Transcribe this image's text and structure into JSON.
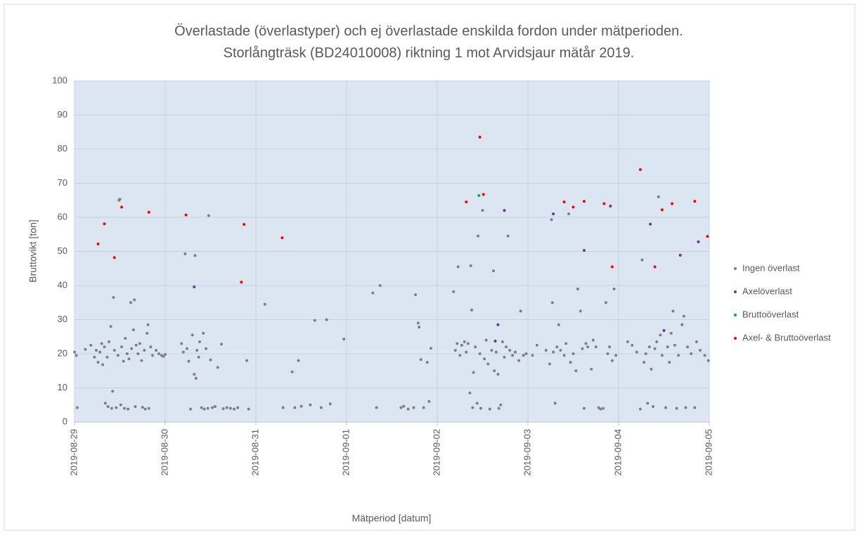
{
  "chart_data": {
    "type": "scatter",
    "title": [
      "Överlastade (överlastyper) och ej överlastade enskilda fordon under mätperioden.",
      "Storlångträsk (BD24010008) riktning 1 mot Arvidsjaur mätår 2019."
    ],
    "xlabel": "Mätperiod [datum]",
    "ylabel": "Bruttovikt [ton]",
    "xlim": [
      0,
      7
    ],
    "ylim": [
      0,
      100
    ],
    "xticks": [
      {
        "value": 0,
        "label": "2019-08-29"
      },
      {
        "value": 1,
        "label": "2019-08-30"
      },
      {
        "value": 2,
        "label": "2019-08-31"
      },
      {
        "value": 3,
        "label": "2019-09-01"
      },
      {
        "value": 4,
        "label": "2019-09-02"
      },
      {
        "value": 5,
        "label": "2019-09-03"
      },
      {
        "value": 6,
        "label": "2019-09-04"
      },
      {
        "value": 7,
        "label": "2019-09-05"
      }
    ],
    "yticks": [
      0,
      10,
      20,
      30,
      40,
      50,
      60,
      70,
      80,
      90,
      100
    ],
    "grid": true,
    "legend": "right",
    "series": [
      {
        "name": "Ingen överlast",
        "color": "#7f7f7f",
        "x": [
          0.0,
          0.02,
          0.03,
          0.12,
          0.18,
          0.22,
          0.24,
          0.26,
          0.28,
          0.3,
          0.31,
          0.33,
          0.34,
          0.36,
          0.37,
          0.38,
          0.4,
          0.41,
          0.42,
          0.43,
          0.44,
          0.46,
          0.48,
          0.49,
          0.5,
          0.51,
          0.52,
          0.54,
          0.55,
          0.56,
          0.58,
          0.59,
          0.6,
          0.62,
          0.63,
          0.65,
          0.66,
          0.67,
          0.68,
          0.7,
          0.72,
          0.74,
          0.75,
          0.77,
          0.78,
          0.8,
          0.81,
          0.82,
          0.84,
          0.86,
          0.9,
          0.93,
          0.96,
          0.98,
          1.0,
          1.18,
          1.2,
          1.22,
          1.24,
          1.26,
          1.28,
          1.3,
          1.32,
          1.33,
          1.34,
          1.35,
          1.37,
          1.38,
          1.4,
          1.42,
          1.43,
          1.45,
          1.47,
          1.48,
          1.5,
          1.52,
          1.55,
          1.58,
          1.62,
          1.64,
          1.68,
          1.72,
          1.76,
          1.8,
          1.9,
          1.92,
          2.1,
          2.3,
          2.4,
          2.43,
          2.47,
          2.5,
          2.6,
          2.65,
          2.72,
          2.78,
          2.82,
          2.97,
          3.29,
          3.33,
          3.37,
          3.6,
          3.63,
          3.68,
          3.74,
          3.76,
          3.79,
          3.8,
          3.82,
          3.85,
          3.89,
          3.91,
          3.93,
          4.18,
          4.2,
          4.22,
          4.23,
          4.25,
          4.27,
          4.3,
          4.32,
          4.34,
          4.36,
          4.37,
          4.38,
          4.39,
          4.4,
          4.42,
          4.44,
          4.45,
          4.47,
          4.48,
          4.5,
          4.52,
          4.54,
          4.56,
          4.58,
          4.6,
          4.62,
          4.63,
          4.65,
          4.67,
          4.68,
          4.7,
          4.72,
          4.74,
          4.76,
          4.78,
          4.8,
          4.83,
          4.86,
          4.9,
          4.92,
          4.95,
          4.98,
          5.05,
          5.1,
          5.2,
          5.24,
          5.26,
          5.27,
          5.28,
          5.3,
          5.32,
          5.34,
          5.36,
          5.4,
          5.42,
          5.45,
          5.47,
          5.5,
          5.53,
          5.55,
          5.58,
          5.6,
          5.62,
          5.64,
          5.66,
          5.7,
          5.72,
          5.75,
          5.78,
          5.8,
          5.83,
          5.86,
          5.88,
          5.9,
          5.93,
          5.95,
          5.97,
          6.1,
          6.15,
          6.2,
          6.24,
          6.26,
          6.28,
          6.3,
          6.32,
          6.34,
          6.36,
          6.38,
          6.4,
          6.42,
          6.44,
          6.46,
          6.48,
          6.52,
          6.54,
          6.56,
          6.58,
          6.6,
          6.62,
          6.64,
          6.66,
          6.7,
          6.72,
          6.74,
          6.76,
          6.8,
          6.84,
          6.86,
          6.9,
          6.95,
          6.99
        ],
        "values": [
          20.5,
          19.5,
          4.2,
          21.3,
          22.5,
          19,
          21,
          17.5,
          20.5,
          23,
          16.8,
          22,
          5.5,
          19,
          4.5,
          23.5,
          28,
          4,
          9,
          36.5,
          21,
          4.2,
          19.5,
          65,
          65.3,
          5,
          22,
          17.8,
          4,
          24.5,
          20,
          3.8,
          18.5,
          35,
          21.5,
          27,
          35.8,
          4.5,
          22.5,
          20,
          23,
          18,
          4.3,
          21,
          3.8,
          26,
          28.5,
          4,
          22,
          19.5,
          21,
          20,
          19.5,
          19.2,
          19.8,
          23,
          20.5,
          49.3,
          21.5,
          17.8,
          3.8,
          25.5,
          14,
          48.8,
          12.8,
          21,
          19,
          23.5,
          4.2,
          26,
          3.8,
          21.5,
          4,
          60.5,
          18.2,
          4.2,
          4.5,
          16,
          22.8,
          3.9,
          4.2,
          4,
          3.8,
          4.2,
          18,
          3.8,
          34.5,
          4.2,
          14.7,
          4.2,
          18,
          4.6,
          5,
          29.8,
          4.2,
          30,
          5.3,
          24.3,
          37.8,
          4.2,
          40,
          4.2,
          4.6,
          3.8,
          4.2,
          37.3,
          29,
          27.8,
          18.3,
          4.2,
          17.5,
          6,
          21.6,
          38.2,
          21,
          23,
          45.5,
          19.5,
          22.5,
          23.5,
          20.5,
          23,
          8.5,
          45.8,
          32.8,
          4.2,
          14.5,
          22,
          5.5,
          54.5,
          20,
          4,
          62,
          18.5,
          24,
          17,
          3.8,
          21,
          44.3,
          15,
          20.5,
          14,
          4,
          5,
          23.5,
          19,
          22,
          54.5,
          21,
          19.5,
          20.5,
          18,
          32.5,
          19.5,
          20,
          19.5,
          22.5,
          21,
          17,
          59.3,
          35,
          20.5,
          5.5,
          22,
          28.5,
          21,
          19.5,
          23,
          61,
          17.5,
          20,
          15,
          39,
          32.5,
          21.5,
          4,
          23,
          22,
          15.5,
          24,
          22,
          4.2,
          3.8,
          4,
          35,
          20,
          22,
          18,
          39,
          19.5,
          23.5,
          22.5,
          20.5,
          3.8,
          47.5,
          17.5,
          20,
          5.5,
          22,
          15.5,
          4.5,
          21.5,
          23.5,
          66,
          25.5,
          19.5,
          4.2,
          22,
          17.5,
          26,
          32.5,
          22.5,
          4,
          19.5,
          28.5,
          31,
          4.2,
          22,
          20,
          4.2,
          23.5,
          21,
          19.5,
          18
        ]
      },
      {
        "name": "Axelöverlast",
        "color": "#7030a0",
        "x": [
          1.32,
          4.64,
          4.67,
          4.74,
          5.28,
          5.62,
          5.91,
          6.35,
          6.5,
          6.68,
          6.88
        ],
        "values": [
          39.6,
          23.7,
          28.5,
          62,
          61,
          50.3,
          63.3,
          58,
          26.8,
          48.9,
          52.8
        ]
      },
      {
        "name": "Bruttoöverlast",
        "color": "#00b050",
        "x": [
          4.46
        ],
        "values": [
          66.4
        ]
      },
      {
        "name": "Axel- & Bruttoöverlast",
        "color": "#ff0000",
        "x": [
          0.26,
          0.33,
          0.44,
          0.52,
          0.82,
          1.23,
          1.84,
          1.87,
          2.29,
          4.32,
          4.47,
          4.51,
          5.4,
          5.5,
          5.62,
          5.84,
          5.93,
          6.24,
          6.4,
          6.48,
          6.59,
          6.84,
          6.98
        ],
        "values": [
          52.2,
          58.1,
          48.2,
          63,
          61.5,
          60.7,
          41,
          57.9,
          54,
          64.5,
          83.5,
          66.7,
          64.5,
          63,
          64.7,
          64,
          45.5,
          74,
          45.5,
          62.2,
          64,
          64.7,
          54.4
        ]
      }
    ]
  }
}
